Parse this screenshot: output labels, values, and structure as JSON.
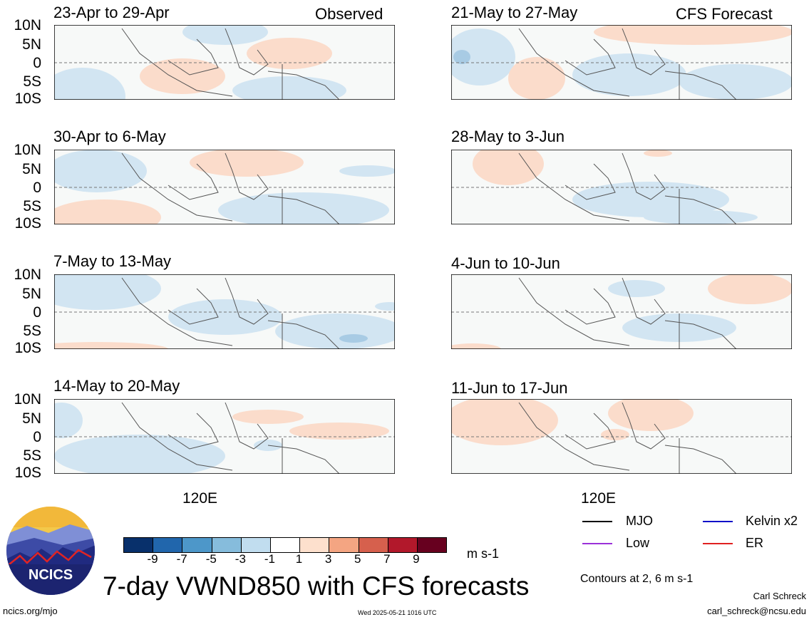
{
  "columns": [
    {
      "heading": "Observed",
      "panels": [
        {
          "period": "23-Apr to 29-Apr"
        },
        {
          "period": "30-Apr to 6-May"
        },
        {
          "period": "7-May to 13-May"
        },
        {
          "period": "14-May to 20-May"
        }
      ]
    },
    {
      "heading": "CFS Forecast",
      "panels": [
        {
          "period": "21-May to 27-May"
        },
        {
          "period": "28-May to 3-Jun"
        },
        {
          "period": "4-Jun to 10-Jun"
        },
        {
          "period": "11-Jun to 17-Jun"
        }
      ]
    }
  ],
  "lat_labels": [
    "10N",
    "5N",
    "0",
    "5S",
    "10S"
  ],
  "lon_label": "120E",
  "colorbar": {
    "colors": [
      "#08306b",
      "#2166ac",
      "#4d97c9",
      "#86bcdc",
      "#c1ddef",
      "#ffffff",
      "#fde0cd",
      "#f4a582",
      "#d6604d",
      "#b2182b",
      "#67001f"
    ],
    "labels": [
      "-9",
      "-7",
      "-5",
      "-3",
      "-1",
      "1",
      "3",
      "5",
      "7",
      "9"
    ],
    "unit": "m s-1"
  },
  "legend": [
    {
      "name": "MJO",
      "color": "#000000"
    },
    {
      "name": "Kelvin x2",
      "color": "#1010c8"
    },
    {
      "name": "Low",
      "color": "#9b30d9"
    },
    {
      "name": "ER",
      "color": "#e02020"
    }
  ],
  "contour_note": "Contours at 2, 6 m s-1",
  "title": "7-day VWND850 with CFS forecasts",
  "logo_text": "NCICS",
  "footer": {
    "url": "ncics.org/mjo",
    "timestamp": "Wed 2025-05-21 1016 UTC",
    "author": "Carl Schreck",
    "email": "carl_schreck@ncsu.edu"
  }
}
